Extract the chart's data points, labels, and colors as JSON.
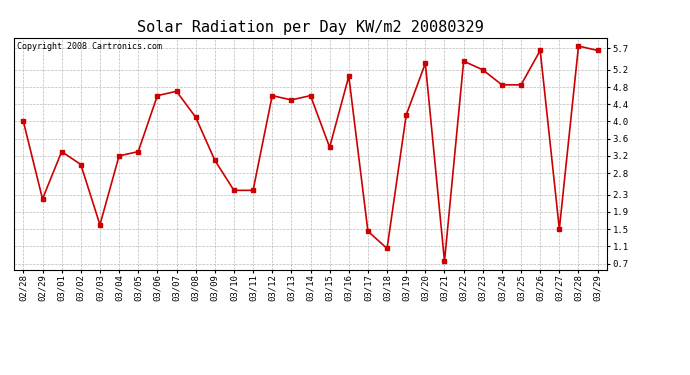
{
  "title": "Solar Radiation per Day KW/m2 20080329",
  "copyright": "Copyright 2008 Cartronics.com",
  "dates": [
    "02/28",
    "02/29",
    "03/01",
    "03/02",
    "03/03",
    "03/04",
    "03/05",
    "03/06",
    "03/07",
    "03/08",
    "03/09",
    "03/10",
    "03/11",
    "03/12",
    "03/13",
    "03/14",
    "03/15",
    "03/16",
    "03/17",
    "03/18",
    "03/19",
    "03/20",
    "03/21",
    "03/22",
    "03/23",
    "03/24",
    "03/25",
    "03/26",
    "03/27",
    "03/28",
    "03/29"
  ],
  "values": [
    4.0,
    2.2,
    3.3,
    3.0,
    1.6,
    3.2,
    3.3,
    4.6,
    4.7,
    4.1,
    3.1,
    2.4,
    2.4,
    4.6,
    4.5,
    4.6,
    3.4,
    5.05,
    1.45,
    1.05,
    4.15,
    5.35,
    0.75,
    5.4,
    5.2,
    4.85,
    4.85,
    5.65,
    1.5,
    5.75,
    5.65
  ],
  "line_color": "#cc0000",
  "marker": "s",
  "marker_size": 2.5,
  "line_width": 1.2,
  "bg_color": "#ffffff",
  "plot_bg_color": "#ffffff",
  "grid_color": "#bbbbbb",
  "yticks": [
    0.7,
    1.1,
    1.5,
    1.9,
    2.3,
    2.8,
    3.2,
    3.6,
    4.0,
    4.4,
    4.8,
    5.2,
    5.7
  ],
  "ylim": [
    0.55,
    5.95
  ],
  "title_fontsize": 11,
  "copyright_fontsize": 6,
  "tick_fontsize": 6.5
}
